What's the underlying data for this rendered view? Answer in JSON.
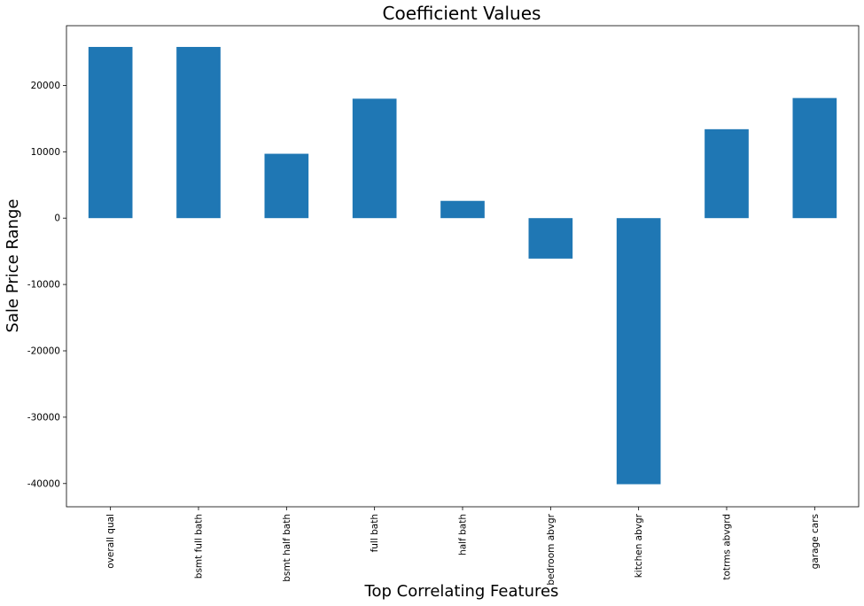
{
  "chart_data": {
    "type": "bar",
    "title": "Coefficient Values",
    "xlabel": "Top Correlating Features",
    "ylabel": "Sale Price Range",
    "categories": [
      "overall qual",
      "bsmt full bath",
      "bsmt half bath",
      "full bath",
      "half bath",
      "bedroom abvgr",
      "kitchen abvgr",
      "totrms abvgrd",
      "garage cars"
    ],
    "values": [
      25800,
      25800,
      9700,
      18000,
      2600,
      -6100,
      -40100,
      13400,
      18100
    ],
    "ylim": [
      -43500,
      29000
    ],
    "yticks": [
      -40000,
      -30000,
      -20000,
      -10000,
      0,
      10000,
      20000
    ],
    "grid": false,
    "bar_color": "#1f77b4"
  }
}
